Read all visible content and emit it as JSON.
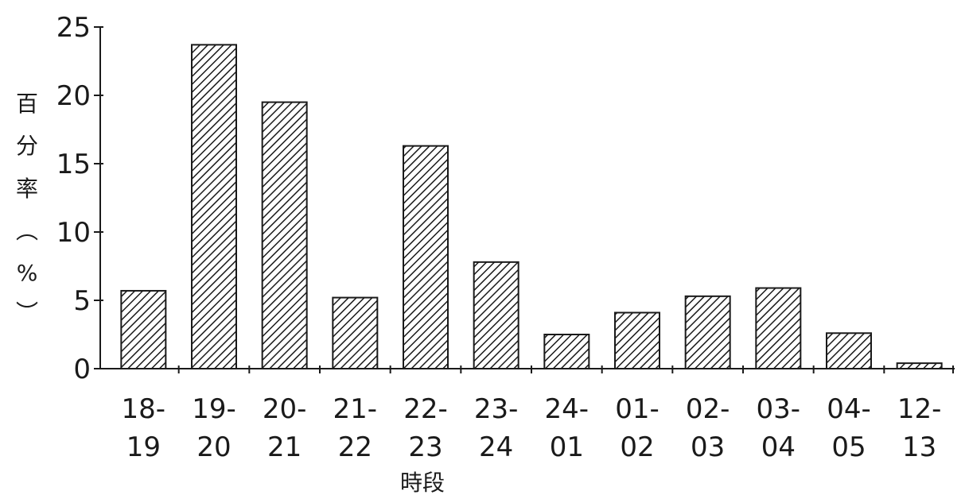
{
  "chart_data": {
    "type": "bar",
    "title": "",
    "xlabel": "時段",
    "ylabel": [
      "百",
      "分",
      "率",
      "︵",
      "%",
      "︶"
    ],
    "ylim": [
      0,
      25
    ],
    "yticks": [
      0,
      5,
      10,
      15,
      20,
      25
    ],
    "grid": false,
    "legend": "none",
    "categories": [
      [
        "18-",
        "19"
      ],
      [
        "19-",
        "20"
      ],
      [
        "20-",
        "21"
      ],
      [
        "21-",
        "22"
      ],
      [
        "22-",
        "23"
      ],
      [
        "23-",
        "24"
      ],
      [
        "24-",
        "01"
      ],
      [
        "01-",
        "02"
      ],
      [
        "02-",
        "03"
      ],
      [
        "03-",
        "04"
      ],
      [
        "04-",
        "05"
      ],
      [
        "12-",
        "13"
      ]
    ],
    "values": [
      5.7,
      23.7,
      19.5,
      5.2,
      16.3,
      7.8,
      2.5,
      4.1,
      5.3,
      5.9,
      2.6,
      0.4
    ],
    "bar_fill": "hatched",
    "colors": {
      "bar_stroke": "#1a1a1a",
      "hatch": "#1a1a1a",
      "axis": "#1a1a1a"
    }
  }
}
